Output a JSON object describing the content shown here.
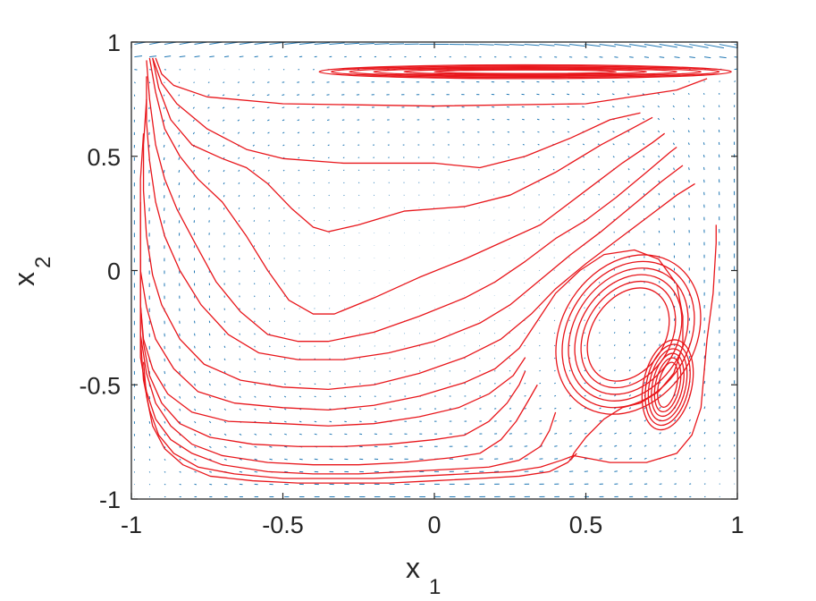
{
  "chart_data": {
    "type": "streamlines-with-vector-field",
    "title": "",
    "xlabel": "x",
    "xlabel_sub": "1",
    "ylabel": "x",
    "ylabel_sub": "2",
    "xlim": [
      -1,
      1
    ],
    "ylim": [
      -1,
      1
    ],
    "xticks": [
      -1,
      -0.5,
      0,
      0.5,
      1
    ],
    "yticks": [
      -1,
      -0.5,
      0,
      0.5,
      1
    ],
    "xtick_labels": [
      "-1",
      "-0.5",
      "0",
      "0.5",
      "1"
    ],
    "ytick_labels": [
      "-1",
      "-0.5",
      "0",
      "0.5",
      "1"
    ],
    "grid": false,
    "colors": {
      "streamline": "#e8161b",
      "vector": "#1f77b4",
      "axes": "#262626"
    },
    "streamlines": [
      [
        [
          -0.92,
          0.93
        ],
        [
          -0.9,
          0.86
        ],
        [
          -0.86,
          0.81
        ],
        [
          -0.75,
          0.76
        ],
        [
          -0.5,
          0.73
        ],
        [
          0,
          0.72
        ],
        [
          0.5,
          0.73
        ],
        [
          0.8,
          0.79
        ],
        [
          0.9,
          0.84
        ]
      ],
      [
        [
          -0.93,
          0.93
        ],
        [
          -0.9,
          0.82
        ],
        [
          -0.85,
          0.73
        ],
        [
          -0.75,
          0.62
        ],
        [
          -0.62,
          0.53
        ],
        [
          -0.5,
          0.49
        ],
        [
          -0.3,
          0.47
        ],
        [
          0,
          0.47
        ],
        [
          0.15,
          0.45
        ],
        [
          0.3,
          0.5
        ],
        [
          0.45,
          0.58
        ],
        [
          0.58,
          0.66
        ],
        [
          0.68,
          0.69
        ]
      ],
      [
        [
          -0.93,
          0.93
        ],
        [
          -0.91,
          0.8
        ],
        [
          -0.87,
          0.66
        ],
        [
          -0.8,
          0.55
        ],
        [
          -0.7,
          0.49
        ],
        [
          -0.62,
          0.45
        ],
        [
          -0.55,
          0.38
        ],
        [
          -0.47,
          0.27
        ],
        [
          -0.4,
          0.19
        ],
        [
          -0.35,
          0.17
        ],
        [
          -0.25,
          0.2
        ],
        [
          -0.1,
          0.26
        ],
        [
          0.1,
          0.28
        ],
        [
          0.25,
          0.33
        ],
        [
          0.4,
          0.43
        ],
        [
          0.55,
          0.55
        ],
        [
          0.65,
          0.62
        ],
        [
          0.72,
          0.67
        ]
      ],
      [
        [
          -0.94,
          0.93
        ],
        [
          -0.92,
          0.78
        ],
        [
          -0.89,
          0.62
        ],
        [
          -0.84,
          0.5
        ],
        [
          -0.78,
          0.4
        ],
        [
          -0.7,
          0.3
        ],
        [
          -0.62,
          0.15
        ],
        [
          -0.55,
          0.0
        ],
        [
          -0.48,
          -0.13
        ],
        [
          -0.4,
          -0.19
        ],
        [
          -0.33,
          -0.19
        ],
        [
          -0.2,
          -0.12
        ],
        [
          -0.05,
          -0.03
        ],
        [
          0.1,
          0.05
        ],
        [
          0.2,
          0.11
        ],
        [
          0.35,
          0.2
        ],
        [
          0.5,
          0.35
        ],
        [
          0.62,
          0.47
        ],
        [
          0.72,
          0.56
        ],
        [
          0.76,
          0.6
        ]
      ],
      [
        [
          -0.95,
          0.92
        ],
        [
          -0.94,
          0.75
        ],
        [
          -0.92,
          0.55
        ],
        [
          -0.89,
          0.4
        ],
        [
          -0.85,
          0.27
        ],
        [
          -0.79,
          0.12
        ],
        [
          -0.72,
          -0.05
        ],
        [
          -0.64,
          -0.18
        ],
        [
          -0.55,
          -0.28
        ],
        [
          -0.45,
          -0.31
        ],
        [
          -0.35,
          -0.31
        ],
        [
          -0.2,
          -0.27
        ],
        [
          -0.05,
          -0.2
        ],
        [
          0.1,
          -0.12
        ],
        [
          0.2,
          -0.05
        ],
        [
          0.3,
          0.04
        ],
        [
          0.4,
          0.14
        ],
        [
          0.5,
          0.22
        ],
        [
          0.6,
          0.32
        ],
        [
          0.7,
          0.43
        ],
        [
          0.78,
          0.52
        ],
        [
          0.8,
          0.54
        ]
      ],
      [
        [
          -0.95,
          0.85
        ],
        [
          -0.95,
          0.65
        ],
        [
          -0.94,
          0.48
        ],
        [
          -0.92,
          0.3
        ],
        [
          -0.89,
          0.15
        ],
        [
          -0.84,
          0.0
        ],
        [
          -0.77,
          -0.15
        ],
        [
          -0.68,
          -0.28
        ],
        [
          -0.58,
          -0.36
        ],
        [
          -0.45,
          -0.39
        ],
        [
          -0.3,
          -0.39
        ],
        [
          -0.15,
          -0.36
        ],
        [
          0.0,
          -0.31
        ],
        [
          0.15,
          -0.23
        ],
        [
          0.25,
          -0.15
        ],
        [
          0.35,
          -0.04
        ],
        [
          0.45,
          0.07
        ],
        [
          0.55,
          0.17
        ],
        [
          0.65,
          0.28
        ],
        [
          0.75,
          0.39
        ],
        [
          0.82,
          0.46
        ]
      ],
      [
        [
          -0.95,
          0.75
        ],
        [
          -0.96,
          0.55
        ],
        [
          -0.96,
          0.35
        ],
        [
          -0.95,
          0.15
        ],
        [
          -0.93,
          -0.02
        ],
        [
          -0.9,
          -0.15
        ],
        [
          -0.84,
          -0.3
        ],
        [
          -0.76,
          -0.41
        ],
        [
          -0.64,
          -0.48
        ],
        [
          -0.5,
          -0.51
        ],
        [
          -0.35,
          -0.52
        ],
        [
          -0.2,
          -0.5
        ],
        [
          -0.05,
          -0.45
        ],
        [
          0.1,
          -0.38
        ],
        [
          0.22,
          -0.3
        ],
        [
          0.32,
          -0.19
        ],
        [
          0.4,
          -0.08
        ],
        [
          0.5,
          0.03
        ],
        [
          0.6,
          0.13
        ],
        [
          0.7,
          0.23
        ],
        [
          0.8,
          0.33
        ],
        [
          0.86,
          0.38
        ]
      ],
      [
        [
          -0.96,
          0.6
        ],
        [
          -0.97,
          0.4
        ],
        [
          -0.97,
          0.2
        ],
        [
          -0.97,
          0.0
        ],
        [
          -0.95,
          -0.16
        ],
        [
          -0.92,
          -0.3
        ],
        [
          -0.86,
          -0.43
        ],
        [
          -0.78,
          -0.53
        ],
        [
          -0.66,
          -0.58
        ],
        [
          -0.5,
          -0.6
        ],
        [
          -0.35,
          -0.61
        ],
        [
          -0.2,
          -0.59
        ],
        [
          -0.05,
          -0.55
        ],
        [
          0.1,
          -0.49
        ],
        [
          0.2,
          -0.43
        ],
        [
          0.28,
          -0.34
        ],
        [
          0.34,
          -0.22
        ],
        [
          0.4,
          -0.1
        ],
        [
          0.48,
          0.0
        ],
        [
          0.56,
          0.07
        ],
        [
          0.66,
          0.09
        ],
        [
          0.74,
          0.05
        ],
        [
          0.8,
          -0.06
        ],
        [
          0.82,
          -0.2
        ],
        [
          0.82,
          -0.33
        ],
        [
          0.79,
          -0.45
        ],
        [
          0.74,
          -0.53
        ],
        [
          0.68,
          -0.58
        ],
        [
          0.62,
          -0.6
        ],
        [
          0.56,
          -0.65
        ],
        [
          0.5,
          -0.73
        ],
        [
          0.46,
          -0.8
        ],
        [
          0.45,
          -0.83
        ]
      ],
      [
        [
          -0.97,
          0.3
        ],
        [
          -0.97,
          0.05
        ],
        [
          -0.97,
          -0.15
        ],
        [
          -0.96,
          -0.3
        ],
        [
          -0.93,
          -0.43
        ],
        [
          -0.88,
          -0.54
        ],
        [
          -0.8,
          -0.62
        ],
        [
          -0.68,
          -0.66
        ],
        [
          -0.5,
          -0.67
        ],
        [
          -0.35,
          -0.68
        ],
        [
          -0.2,
          -0.67
        ],
        [
          -0.05,
          -0.64
        ],
        [
          0.08,
          -0.6
        ],
        [
          0.18,
          -0.54
        ],
        [
          0.26,
          -0.46
        ],
        [
          0.3,
          -0.38
        ]
      ],
      [
        [
          -0.97,
          0.05
        ],
        [
          -0.97,
          -0.15
        ],
        [
          -0.96,
          -0.32
        ],
        [
          -0.94,
          -0.46
        ],
        [
          -0.9,
          -0.58
        ],
        [
          -0.84,
          -0.67
        ],
        [
          -0.74,
          -0.73
        ],
        [
          -0.6,
          -0.76
        ],
        [
          -0.45,
          -0.77
        ],
        [
          -0.3,
          -0.77
        ],
        [
          -0.15,
          -0.76
        ],
        [
          0.0,
          -0.74
        ],
        [
          0.1,
          -0.72
        ],
        [
          0.18,
          -0.66
        ],
        [
          0.24,
          -0.58
        ],
        [
          0.28,
          -0.5
        ],
        [
          0.3,
          -0.44
        ]
      ],
      [
        [
          -0.97,
          -0.1
        ],
        [
          -0.97,
          -0.28
        ],
        [
          -0.95,
          -0.45
        ],
        [
          -0.92,
          -0.58
        ],
        [
          -0.87,
          -0.68
        ],
        [
          -0.8,
          -0.76
        ],
        [
          -0.7,
          -0.81
        ],
        [
          -0.55,
          -0.84
        ],
        [
          -0.4,
          -0.85
        ],
        [
          -0.25,
          -0.85
        ],
        [
          -0.1,
          -0.84
        ],
        [
          0.05,
          -0.82
        ],
        [
          0.15,
          -0.8
        ],
        [
          0.22,
          -0.74
        ],
        [
          0.27,
          -0.66
        ],
        [
          0.31,
          -0.57
        ],
        [
          0.34,
          -0.5
        ]
      ],
      [
        [
          -0.97,
          -0.2
        ],
        [
          -0.97,
          -0.38
        ],
        [
          -0.95,
          -0.53
        ],
        [
          -0.92,
          -0.65
        ],
        [
          -0.87,
          -0.74
        ],
        [
          -0.8,
          -0.8
        ],
        [
          -0.7,
          -0.85
        ],
        [
          -0.55,
          -0.88
        ],
        [
          -0.4,
          -0.89
        ],
        [
          -0.25,
          -0.89
        ],
        [
          -0.1,
          -0.88
        ],
        [
          0.05,
          -0.87
        ],
        [
          0.18,
          -0.86
        ],
        [
          0.28,
          -0.83
        ],
        [
          0.35,
          -0.77
        ],
        [
          0.38,
          -0.7
        ],
        [
          0.4,
          -0.62
        ]
      ],
      [
        [
          -0.97,
          -0.3
        ],
        [
          -0.96,
          -0.48
        ],
        [
          -0.94,
          -0.61
        ],
        [
          -0.91,
          -0.72
        ],
        [
          -0.86,
          -0.8
        ],
        [
          -0.78,
          -0.86
        ],
        [
          -0.66,
          -0.89
        ],
        [
          -0.5,
          -0.91
        ],
        [
          -0.35,
          -0.91
        ],
        [
          -0.2,
          -0.91
        ],
        [
          -0.05,
          -0.9
        ],
        [
          0.1,
          -0.89
        ],
        [
          0.25,
          -0.88
        ],
        [
          0.35,
          -0.86
        ],
        [
          0.42,
          -0.83
        ],
        [
          0.46,
          -0.81
        ],
        [
          0.5,
          -0.82
        ],
        [
          0.58,
          -0.84
        ],
        [
          0.7,
          -0.84
        ],
        [
          0.8,
          -0.8
        ],
        [
          0.85,
          -0.72
        ],
        [
          0.88,
          -0.6
        ],
        [
          0.89,
          -0.45
        ],
        [
          0.9,
          -0.3
        ],
        [
          0.92,
          -0.1
        ],
        [
          0.93,
          0.12
        ],
        [
          0.93,
          0.2
        ]
      ],
      [
        [
          -0.96,
          -0.4
        ],
        [
          -0.95,
          -0.55
        ],
        [
          -0.93,
          -0.68
        ],
        [
          -0.89,
          -0.78
        ],
        [
          -0.83,
          -0.85
        ],
        [
          -0.74,
          -0.9
        ],
        [
          -0.6,
          -0.92
        ],
        [
          -0.45,
          -0.93
        ],
        [
          -0.3,
          -0.93
        ],
        [
          -0.15,
          -0.93
        ],
        [
          0.0,
          -0.92
        ],
        [
          0.15,
          -0.91
        ],
        [
          0.28,
          -0.9
        ],
        [
          0.38,
          -0.88
        ],
        [
          0.44,
          -0.84
        ],
        [
          0.47,
          -0.8
        ]
      ]
    ],
    "closed_loops": [
      {
        "center": [
          0.3,
          0.87
        ],
        "rx": [
          0.68,
          0.64,
          0.58,
          0.5,
          0.4,
          0.3
        ],
        "ry": [
          0.03,
          0.025,
          0.02,
          0.016,
          0.012,
          0.008
        ]
      },
      {
        "center": [
          0.64,
          -0.28
        ],
        "rx": [
          0.22,
          0.2,
          0.18,
          0.16,
          0.14,
          0.12
        ],
        "ry": [
          0.37,
          0.34,
          0.31,
          0.28,
          0.25,
          0.22
        ],
        "tilt_deg": 57
      },
      {
        "center": [
          0.77,
          -0.5
        ],
        "rx": [
          0.08,
          0.07,
          0.06,
          0.05,
          0.04,
          0.03
        ],
        "ry": [
          0.2,
          0.18,
          0.16,
          0.14,
          0.12,
          0.1
        ],
        "tilt_deg": 78
      }
    ],
    "vector_field": {
      "grid_x_from": -0.99,
      "grid_x_to": 0.99,
      "grid_x_count": 41,
      "grid_y_from": -0.99,
      "grid_y_to": 0.99,
      "grid_y_count": 37
    }
  }
}
